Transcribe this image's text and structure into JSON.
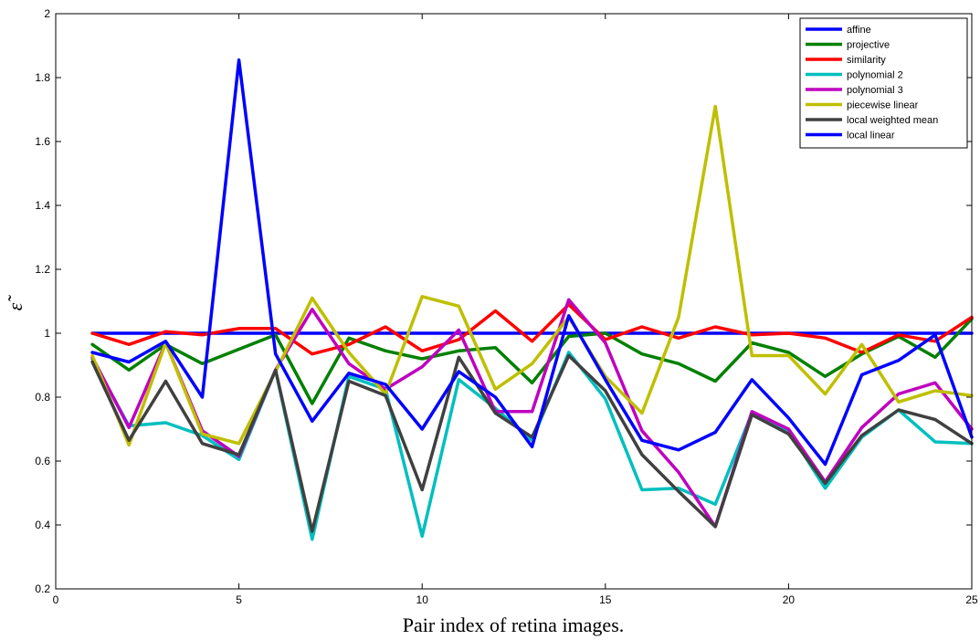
{
  "chart_data": {
    "type": "line",
    "title": "",
    "xlabel": "Pair index of retina images.",
    "ylabel": "ε̃",
    "xlim": [
      0,
      25
    ],
    "ylim": [
      0.2,
      2
    ],
    "xticks": [
      0,
      5,
      10,
      15,
      20,
      25
    ],
    "yticks": [
      0.2,
      0.4,
      0.6,
      0.8,
      1,
      1.2,
      1.4,
      1.6,
      1.8,
      2
    ],
    "grid": false,
    "legend_position": "top-right",
    "x": [
      1,
      2,
      3,
      4,
      5,
      6,
      7,
      8,
      9,
      10,
      11,
      12,
      13,
      14,
      15,
      16,
      17,
      18,
      19,
      20,
      21,
      22,
      23,
      24,
      25
    ],
    "series": [
      {
        "name": "affine",
        "color": "#0000ff",
        "values": [
          1,
          1,
          1,
          1,
          1,
          1,
          1,
          1,
          1,
          1,
          1,
          1,
          1,
          1,
          1,
          1,
          1,
          1,
          1,
          1,
          1,
          1,
          1,
          1,
          1
        ]
      },
      {
        "name": "projective",
        "color": "#008000",
        "values": [
          0.965,
          0.885,
          0.965,
          0.905,
          0.95,
          0.995,
          0.78,
          0.985,
          0.945,
          0.92,
          0.945,
          0.955,
          0.845,
          0.99,
          1.0,
          0.935,
          0.905,
          0.85,
          0.97,
          0.94,
          0.865,
          0.935,
          0.99,
          0.925,
          1.045
        ]
      },
      {
        "name": "similarity",
        "color": "#ff0000",
        "values": [
          1.0,
          0.965,
          1.005,
          0.995,
          1.015,
          1.015,
          0.935,
          0.965,
          1.02,
          0.945,
          0.98,
          1.07,
          0.975,
          1.09,
          0.98,
          1.02,
          0.985,
          1.02,
          0.995,
          1.0,
          0.985,
          0.94,
          0.995,
          0.975,
          1.05
        ]
      },
      {
        "name": "polynomial 2",
        "color": "#00bfbf",
        "values": [
          0.92,
          0.71,
          0.72,
          0.68,
          0.605,
          0.885,
          0.355,
          0.865,
          0.825,
          0.365,
          0.855,
          0.765,
          0.665,
          0.94,
          0.795,
          0.51,
          0.515,
          0.465,
          0.75,
          0.695,
          0.515,
          0.675,
          0.76,
          0.66,
          0.655
        ]
      },
      {
        "name": "polynomial 3",
        "color": "#bf00bf",
        "values": [
          0.925,
          0.705,
          0.97,
          0.695,
          0.615,
          0.885,
          1.075,
          0.905,
          0.825,
          0.895,
          1.01,
          0.755,
          0.755,
          1.105,
          0.97,
          0.695,
          0.565,
          0.395,
          0.755,
          0.7,
          0.535,
          0.705,
          0.81,
          0.845,
          0.7
        ]
      },
      {
        "name": "piecewise linear",
        "color": "#bfbf00",
        "values": [
          0.93,
          0.65,
          0.97,
          0.685,
          0.655,
          0.88,
          1.11,
          0.94,
          0.81,
          1.115,
          1.085,
          0.825,
          0.905,
          1.05,
          0.865,
          0.75,
          1.05,
          1.71,
          0.93,
          0.93,
          0.81,
          0.965,
          0.785,
          0.82,
          0.805
        ]
      },
      {
        "name": "local weighted mean",
        "color": "#404040",
        "values": [
          0.91,
          0.665,
          0.85,
          0.655,
          0.62,
          0.885,
          0.38,
          0.85,
          0.805,
          0.51,
          0.925,
          0.75,
          0.675,
          0.93,
          0.82,
          0.62,
          0.505,
          0.395,
          0.745,
          0.685,
          0.53,
          0.68,
          0.76,
          0.73,
          0.655
        ]
      },
      {
        "name": "local linear",
        "color": "#0000ff",
        "values": [
          0.94,
          0.91,
          0.975,
          0.8,
          1.855,
          0.935,
          0.725,
          0.875,
          0.84,
          0.7,
          0.88,
          0.8,
          0.645,
          1.055,
          0.855,
          0.665,
          0.635,
          0.69,
          0.855,
          0.735,
          0.59,
          0.87,
          0.915,
          0.995,
          0.675
        ]
      }
    ]
  }
}
